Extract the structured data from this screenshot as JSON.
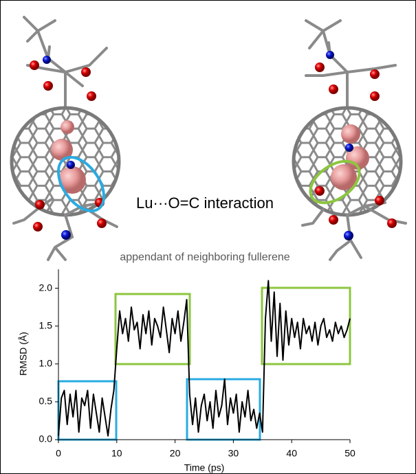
{
  "chart_data": {
    "type": "line",
    "annotations": [
      "Lu···O=C interaction",
      "appendant of neighboring fullerene"
    ],
    "x_label": "Time (ps)",
    "y_label": "RMSD (Å)",
    "x": [
      0,
      0.5,
      1,
      1.5,
      2,
      2.5,
      3,
      3.5,
      4,
      4.5,
      5,
      5.5,
      6,
      6.5,
      7,
      7.5,
      8,
      8.5,
      9,
      9.5,
      10,
      10.5,
      11,
      11.5,
      12,
      12.5,
      13,
      13.5,
      14,
      14.5,
      15,
      15.5,
      16,
      16.5,
      17,
      17.5,
      18,
      18.5,
      19,
      19.5,
      20,
      20.5,
      21,
      21.5,
      22,
      22.5,
      23,
      23.5,
      24,
      24.5,
      25,
      25.5,
      26,
      26.5,
      27,
      27.5,
      28,
      28.5,
      29,
      29.5,
      30,
      30.5,
      31,
      31.5,
      32,
      32.5,
      33,
      33.5,
      34,
      34.5,
      35,
      35.5,
      36,
      36.5,
      37,
      37.5,
      38,
      38.5,
      39,
      39.5,
      40,
      40.5,
      41,
      41.5,
      42,
      42.5,
      43,
      43.5,
      44,
      44.5,
      45,
      45.5,
      46,
      46.5,
      47,
      47.5,
      48,
      48.5,
      49,
      49.5,
      50
    ],
    "values": [
      0.05,
      0.55,
      0.65,
      0.2,
      0.6,
      0.3,
      0.65,
      0.1,
      0.55,
      0.45,
      0.65,
      0.15,
      0.6,
      0.35,
      0.1,
      0.55,
      0.3,
      0.05,
      0.4,
      0.65,
      1.2,
      1.7,
      1.4,
      1.6,
      1.3,
      1.75,
      1.45,
      1.55,
      1.2,
      1.65,
      1.4,
      1.7,
      1.25,
      1.6,
      1.5,
      1.35,
      1.75,
      1.45,
      1.15,
      1.6,
      1.4,
      1.7,
      1.3,
      1.55,
      1.85,
      0.6,
      0.2,
      0.55,
      0.1,
      0.45,
      0.6,
      0.25,
      0.5,
      0.15,
      0.65,
      0.3,
      0.45,
      0.8,
      0.2,
      0.55,
      0.35,
      0.6,
      0.1,
      0.5,
      0.3,
      0.65,
      0.25,
      0.4,
      0.15,
      0.35,
      0.1,
      1.6,
      2.1,
      1.3,
      1.95,
      1.1,
      1.8,
      1.05,
      1.7,
      1.25,
      1.6,
      1.35,
      1.55,
      1.2,
      1.6,
      1.4,
      1.5,
      1.3,
      1.55,
      1.25,
      1.5,
      1.6,
      1.35,
      1.45,
      1.3,
      1.55,
      1.4,
      1.5,
      1.35,
      1.45,
      1.6
    ],
    "color": "#000000",
    "xlim": [
      0,
      50
    ],
    "xticks": [
      0,
      10,
      20,
      30,
      40,
      50
    ],
    "ylim": [
      0,
      2.25
    ],
    "yticks": [
      {
        "value": 0,
        "label": "0.0"
      },
      0.5,
      {
        "value": 1,
        "label": "1.0"
      },
      1.5,
      {
        "value": 2,
        "label": "2.0"
      }
    ]
  }
}
